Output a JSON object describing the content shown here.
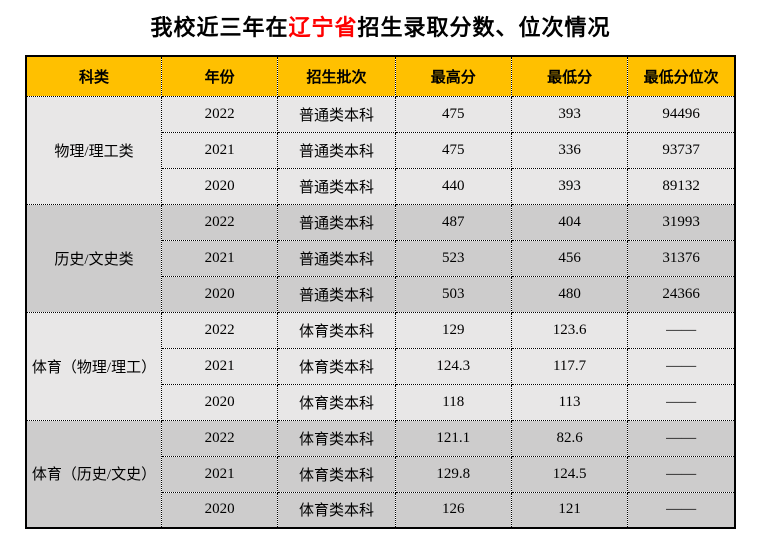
{
  "title": {
    "prefix": "我校近三年在",
    "highlight": "辽宁省",
    "suffix": "招生录取分数、位次情况"
  },
  "colors": {
    "header_bg": "#FFC000",
    "row_light": "#E8E7E7",
    "row_dark": "#CDCCCC",
    "highlight_red": "#FF0000",
    "border": "#000000"
  },
  "table": {
    "columns": [
      "科类",
      "年份",
      "招生批次",
      "最高分",
      "最低分",
      "最低分位次"
    ],
    "groups": [
      {
        "category": "物理/理工类",
        "rows": [
          {
            "year": "2022",
            "batch": "普通类本科",
            "max": "475",
            "min": "393",
            "rank": "94496"
          },
          {
            "year": "2021",
            "batch": "普通类本科",
            "max": "475",
            "min": "336",
            "rank": "93737"
          },
          {
            "year": "2020",
            "batch": "普通类本科",
            "max": "440",
            "min": "393",
            "rank": "89132"
          }
        ]
      },
      {
        "category": "历史/文史类",
        "rows": [
          {
            "year": "2022",
            "batch": "普通类本科",
            "max": "487",
            "min": "404",
            "rank": "31993"
          },
          {
            "year": "2021",
            "batch": "普通类本科",
            "max": "523",
            "min": "456",
            "rank": "31376"
          },
          {
            "year": "2020",
            "batch": "普通类本科",
            "max": "503",
            "min": "480",
            "rank": "24366"
          }
        ]
      },
      {
        "category": "体育（物理/理工）",
        "rows": [
          {
            "year": "2022",
            "batch": "体育类本科",
            "max": "129",
            "min": "123.6",
            "rank": "——"
          },
          {
            "year": "2021",
            "batch": "体育类本科",
            "max": "124.3",
            "min": "117.7",
            "rank": "——"
          },
          {
            "year": "2020",
            "batch": "体育类本科",
            "max": "118",
            "min": "113",
            "rank": "——"
          }
        ]
      },
      {
        "category": "体育（历史/文史）",
        "rows": [
          {
            "year": "2022",
            "batch": "体育类本科",
            "max": "121.1",
            "min": "82.6",
            "rank": "——"
          },
          {
            "year": "2021",
            "batch": "体育类本科",
            "max": "129.8",
            "min": "124.5",
            "rank": "——"
          },
          {
            "year": "2020",
            "batch": "体育类本科",
            "max": "126",
            "min": "121",
            "rank": "——"
          }
        ]
      }
    ]
  }
}
